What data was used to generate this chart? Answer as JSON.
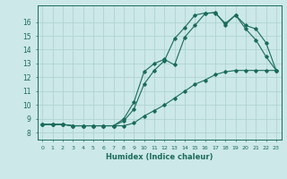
{
  "xlabel": "Humidex (Indice chaleur)",
  "background_color": "#cce8e8",
  "line_color": "#1a6b5a",
  "grid_color": "#aacfcf",
  "xlim": [
    -0.5,
    23.5
  ],
  "ylim": [
    7.5,
    17.2
  ],
  "xticks": [
    0,
    1,
    2,
    3,
    4,
    5,
    6,
    7,
    8,
    9,
    10,
    11,
    12,
    13,
    14,
    15,
    16,
    17,
    18,
    19,
    20,
    21,
    22,
    23
  ],
  "yticks": [
    8,
    9,
    10,
    11,
    12,
    13,
    14,
    15,
    16
  ],
  "series1_x": [
    0,
    1,
    2,
    3,
    4,
    5,
    6,
    7,
    8,
    9,
    10,
    11,
    12,
    13,
    14,
    15,
    16,
    17,
    18,
    19,
    20,
    21,
    22,
    23
  ],
  "series1_y": [
    8.6,
    8.6,
    8.6,
    8.5,
    8.5,
    8.5,
    8.5,
    8.5,
    9.0,
    10.2,
    12.4,
    13.0,
    13.3,
    12.9,
    14.9,
    15.75,
    16.6,
    16.7,
    15.8,
    16.5,
    15.5,
    14.7,
    13.5,
    12.5
  ],
  "series2_x": [
    0,
    1,
    2,
    3,
    4,
    5,
    6,
    7,
    8,
    9,
    10,
    11,
    12,
    13,
    14,
    15,
    16,
    17,
    18,
    19,
    20,
    21,
    22,
    23
  ],
  "series2_y": [
    8.6,
    8.6,
    8.6,
    8.5,
    8.5,
    8.5,
    8.5,
    8.5,
    8.85,
    9.7,
    11.5,
    12.5,
    13.2,
    14.8,
    15.6,
    16.5,
    16.65,
    16.65,
    15.9,
    16.5,
    15.75,
    15.5,
    14.5,
    12.5
  ],
  "series3_x": [
    0,
    1,
    2,
    3,
    4,
    5,
    6,
    7,
    8,
    9,
    10,
    11,
    12,
    13,
    14,
    15,
    16,
    17,
    18,
    19,
    20,
    21,
    22,
    23
  ],
  "series3_y": [
    8.6,
    8.6,
    8.6,
    8.5,
    8.5,
    8.5,
    8.5,
    8.5,
    8.5,
    8.7,
    9.2,
    9.6,
    10.0,
    10.5,
    11.0,
    11.5,
    11.8,
    12.2,
    12.4,
    12.5,
    12.5,
    12.5,
    12.5,
    12.5
  ]
}
